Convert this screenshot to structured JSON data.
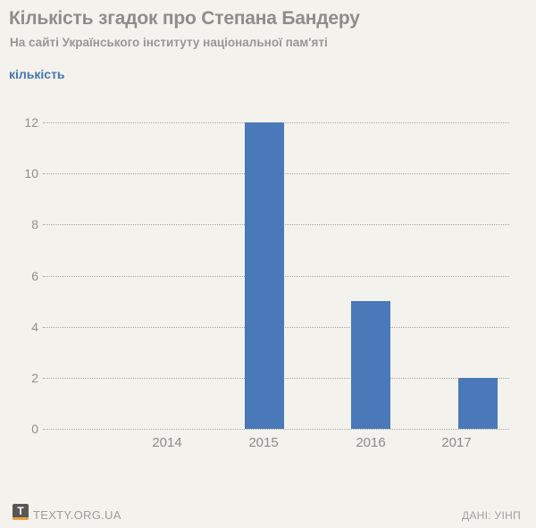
{
  "header": {
    "title": "Кількість згадок про Степана Бандеру",
    "subtitle": "На сайті Українського інституту національної пам'яті"
  },
  "chart_data": {
    "type": "bar",
    "title": "Кількість згадок про Степана Бандеру",
    "subtitle": "На сайті Українського інституту національної пам'яті",
    "ylabel": "кількість",
    "xlabel": "",
    "categories": [
      "2014",
      "2015",
      "2016",
      "2017"
    ],
    "values": [
      0,
      12,
      5,
      2
    ],
    "ylim": [
      0,
      12
    ],
    "yticks": [
      0,
      2,
      4,
      6,
      8,
      10,
      12
    ],
    "grid": "horizontal-dotted",
    "legend": "none",
    "bar_color": "#4979b8"
  },
  "footer": {
    "logo_letter": "T",
    "brand": "TEXTY.ORG.UA",
    "source": "ДАНІ: УІНП"
  },
  "colors": {
    "background": "#f4f2ed",
    "bar": "#4979b8",
    "accent_blue": "#4576b5",
    "title_gray": "#8d8d8d",
    "grid_dot": "#aba69c",
    "logo_orange": "#eca13d",
    "logo_dark": "#575757"
  }
}
